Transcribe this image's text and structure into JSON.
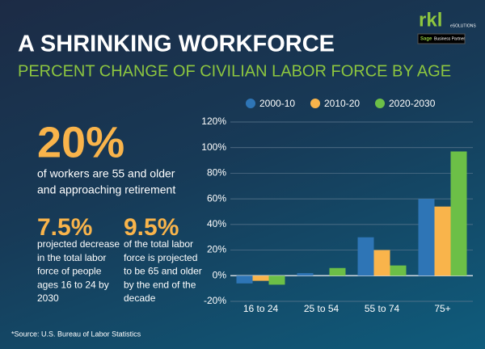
{
  "header": {
    "title": "A SHRINKING WORKFORCE",
    "subtitle": "PERCENT CHANGE OF CIVILIAN LABOR FORCE BY AGE"
  },
  "logo": {
    "mark": "rkl",
    "name": "eSOLUTIONS",
    "badge_brand": "Sage",
    "badge_text": "Business Partner"
  },
  "stats": [
    {
      "value": "20%",
      "lines": [
        "of workers are 55 and older",
        "and approaching retirement"
      ]
    },
    {
      "value": "7.5%",
      "lines": [
        "projected decrease",
        "in the total labor",
        "force of people",
        "ages 16 to 24 by",
        "2030"
      ]
    },
    {
      "value": "9.5%",
      "lines": [
        "of the total labor",
        "force is projected",
        "to be 65 and older",
        "by the end of the",
        "decade"
      ]
    }
  ],
  "source": "*Source: U.S. Bureau of Labor Statistics",
  "chart_data": {
    "type": "bar",
    "categories": [
      "16 to 24",
      "25 to 54",
      "55 to 74",
      "75+"
    ],
    "series": [
      {
        "name": "2000-10",
        "color": "#2e75b6",
        "values": [
          -6,
          2,
          30,
          60
        ]
      },
      {
        "name": "2010-20",
        "color": "#f9b44b",
        "values": [
          -4,
          0,
          20,
          54
        ]
      },
      {
        "name": "2020-2030",
        "color": "#6cbf47",
        "values": [
          -7,
          6,
          8,
          97
        ]
      }
    ],
    "ylim": [
      -20,
      120
    ],
    "yticks": [
      {
        "value": -20,
        "label": "-20%"
      },
      {
        "value": 0,
        "label": "0%"
      },
      {
        "value": 20,
        "label": "20%"
      },
      {
        "value": 40,
        "label": "40%"
      },
      {
        "value": 60,
        "label": "60%"
      },
      {
        "value": 80,
        "label": "80%"
      },
      {
        "value": 100,
        "label": "100%"
      },
      {
        "value": 120,
        "label": "120%"
      }
    ],
    "grid": true,
    "legend": "top"
  }
}
